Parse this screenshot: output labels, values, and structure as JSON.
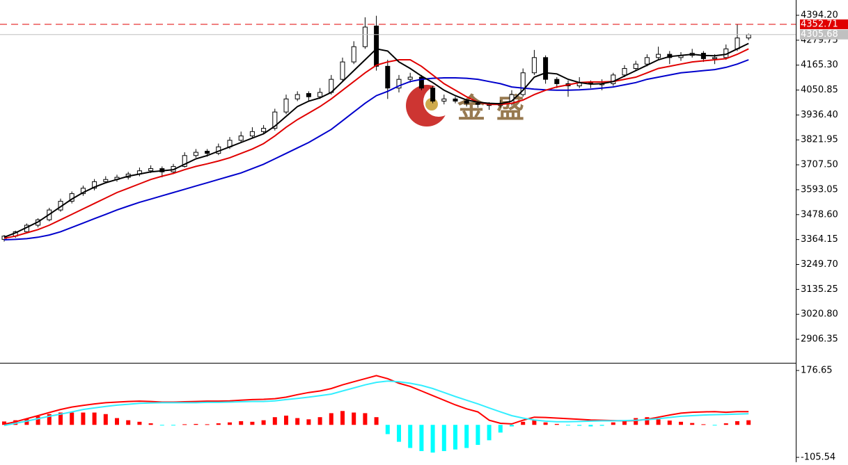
{
  "chart_data": [
    {
      "type": "candlestick",
      "watermark": "金盛",
      "up_color": "#ffffff",
      "down_color": "#000000",
      "wick_color": "#000000",
      "candles": [
        [
          3365,
          3385,
          3355,
          3380
        ],
        [
          3380,
          3405,
          3372,
          3400
        ],
        [
          3400,
          3438,
          3392,
          3430
        ],
        [
          3430,
          3462,
          3420,
          3455
        ],
        [
          3455,
          3510,
          3448,
          3500
        ],
        [
          3500,
          3552,
          3492,
          3540
        ],
        [
          3540,
          3585,
          3530,
          3575
        ],
        [
          3575,
          3612,
          3565,
          3600
        ],
        [
          3600,
          3642,
          3590,
          3630
        ],
        [
          3630,
          3655,
          3622,
          3640
        ],
        [
          3640,
          3662,
          3630,
          3650
        ],
        [
          3650,
          3675,
          3640,
          3665
        ],
        [
          3665,
          3695,
          3655,
          3680
        ],
        [
          3680,
          3705,
          3670,
          3690
        ],
        [
          3690,
          3700,
          3650,
          3675
        ],
        [
          3675,
          3712,
          3665,
          3700
        ],
        [
          3700,
          3765,
          3695,
          3750
        ],
        [
          3750,
          3780,
          3740,
          3765
        ],
        [
          3770,
          3780,
          3745,
          3760
        ],
        [
          3760,
          3805,
          3752,
          3790
        ],
        [
          3790,
          3835,
          3780,
          3820
        ],
        [
          3820,
          3860,
          3810,
          3840
        ],
        [
          3840,
          3880,
          3830,
          3860
        ],
        [
          3860,
          3890,
          3850,
          3875
        ],
        [
          3875,
          3965,
          3865,
          3950
        ],
        [
          3950,
          4030,
          3940,
          4010
        ],
        [
          4010,
          4045,
          4000,
          4030
        ],
        [
          4035,
          4045,
          4000,
          4020
        ],
        [
          4020,
          4060,
          4010,
          4040
        ],
        [
          4040,
          4120,
          4030,
          4100
        ],
        [
          4100,
          4200,
          4090,
          4180
        ],
        [
          4180,
          4275,
          4170,
          4250
        ],
        [
          4250,
          4385,
          4240,
          4340
        ],
        [
          4345,
          4392,
          4140,
          4160
        ],
        [
          4160,
          4190,
          4010,
          4060
        ],
        [
          4060,
          4120,
          4040,
          4100
        ],
        [
          4100,
          4130,
          4085,
          4110
        ],
        [
          4110,
          4120,
          4050,
          4060
        ],
        [
          4060,
          4070,
          3990,
          4000
        ],
        [
          4000,
          4030,
          3985,
          4010
        ],
        [
          4010,
          4020,
          3990,
          4000
        ],
        [
          4000,
          4010,
          3975,
          3990
        ],
        [
          3990,
          4000,
          3970,
          3985
        ],
        [
          3985,
          3995,
          3960,
          3980
        ],
        [
          3980,
          4005,
          3970,
          3990
        ],
        [
          3990,
          4050,
          3980,
          4030
        ],
        [
          4030,
          4150,
          4020,
          4130
        ],
        [
          4130,
          4235,
          4120,
          4200
        ],
        [
          4200,
          4210,
          4080,
          4100
        ],
        [
          4100,
          4110,
          4060,
          4080
        ],
        [
          4080,
          4095,
          4020,
          4070
        ],
        [
          4070,
          4110,
          4060,
          4085
        ],
        [
          4085,
          4095,
          4060,
          4080
        ],
        [
          4075,
          4100,
          4050,
          4080
        ],
        [
          4080,
          4130,
          4070,
          4120
        ],
        [
          4120,
          4165,
          4110,
          4150
        ],
        [
          4150,
          4185,
          4140,
          4170
        ],
        [
          4170,
          4215,
          4160,
          4200
        ],
        [
          4200,
          4250,
          4190,
          4215
        ],
        [
          4215,
          4230,
          4170,
          4200
        ],
        [
          4200,
          4225,
          4185,
          4210
        ],
        [
          4210,
          4240,
          4200,
          4220
        ],
        [
          4220,
          4230,
          4180,
          4195
        ],
        [
          4195,
          4215,
          4170,
          4200
        ],
        [
          4200,
          4260,
          4190,
          4240
        ],
        [
          4240,
          4352,
          4230,
          4290
        ],
        [
          4290,
          4310,
          4280,
          4305
        ]
      ],
      "lines": [
        {
          "color": "#0000cc",
          "values": [
            3363,
            3365,
            3368,
            3375,
            3385,
            3400,
            3420,
            3440,
            3460,
            3480,
            3500,
            3518,
            3535,
            3550,
            3565,
            3580,
            3595,
            3610,
            3625,
            3640,
            3655,
            3670,
            3690,
            3710,
            3735,
            3760,
            3785,
            3810,
            3840,
            3870,
            3910,
            3950,
            3990,
            4025,
            4045,
            4070,
            4090,
            4100,
            4105,
            4107,
            4107,
            4105,
            4100,
            4090,
            4080,
            4065,
            4060,
            4055,
            4052,
            4050,
            4050,
            4052,
            4055,
            4060,
            4065,
            4075,
            4085,
            4100,
            4110,
            4120,
            4130,
            4135,
            4140,
            4145,
            4155,
            4170,
            4190
          ]
        },
        {
          "color": "#e00000",
          "values": [
            3370,
            3380,
            3395,
            3410,
            3430,
            3455,
            3480,
            3505,
            3530,
            3555,
            3580,
            3600,
            3620,
            3640,
            3655,
            3668,
            3685,
            3700,
            3712,
            3725,
            3740,
            3760,
            3780,
            3805,
            3840,
            3880,
            3915,
            3945,
            3975,
            4010,
            4050,
            4090,
            4130,
            4165,
            4180,
            4190,
            4190,
            4160,
            4120,
            4080,
            4050,
            4020,
            3995,
            3985,
            3985,
            3990,
            4005,
            4030,
            4050,
            4065,
            4075,
            4085,
            4088,
            4088,
            4090,
            4100,
            4110,
            4130,
            4150,
            4160,
            4170,
            4180,
            4185,
            4190,
            4195,
            4215,
            4240
          ]
        },
        {
          "color": "#000000",
          "values": [
            3375,
            3395,
            3420,
            3445,
            3480,
            3515,
            3550,
            3580,
            3605,
            3625,
            3640,
            3655,
            3665,
            3675,
            3680,
            3685,
            3710,
            3735,
            3750,
            3770,
            3790,
            3810,
            3830,
            3850,
            3885,
            3930,
            3975,
            4000,
            4015,
            4040,
            4090,
            4140,
            4190,
            4240,
            4230,
            4180,
            4150,
            4115,
            4085,
            4050,
            4025,
            4005,
            3995,
            3990,
            3988,
            4000,
            4050,
            4110,
            4130,
            4125,
            4100,
            4085,
            4078,
            4080,
            4090,
            4115,
            4140,
            4165,
            4190,
            4205,
            4210,
            4215,
            4210,
            4208,
            4215,
            4240,
            4265
          ]
        }
      ],
      "ylim": [
        2798,
        4464.4
      ],
      "yticks": [
        {
          "value": 4394.2,
          "label": "4394.20"
        },
        4279.75,
        {
          "value": 4165.3,
          "label": "4165.30"
        },
        4050.85,
        {
          "value": 3936.4,
          "label": "3936.40"
        },
        3821.95,
        {
          "value": 3707.5,
          "label": "3707.50"
        },
        3593.05,
        {
          "value": 3478.6,
          "label": "3478.60"
        },
        3364.15,
        {
          "value": 3249.7,
          "label": "3249.70"
        },
        3135.25,
        {
          "value": 3020.8,
          "label": "3020.80"
        },
        2906.35
      ],
      "price_labels": [
        {
          "value": 4352.71,
          "color": "#e00000",
          "line": "dashed"
        },
        {
          "value": 4305.68,
          "color": "#c0c0c0",
          "line": "solid"
        }
      ]
    },
    {
      "type": "macd",
      "pos_color": "#ff0000",
      "neg_color": "#00ffff",
      "histogram": [
        11,
        15,
        20,
        28,
        35,
        40,
        40,
        40,
        40,
        35,
        22,
        15,
        10,
        5,
        -2,
        -1,
        2,
        3,
        2,
        5,
        8,
        12,
        10,
        15,
        25,
        30,
        22,
        18,
        25,
        38,
        45,
        40,
        38,
        25,
        -30,
        -55,
        -75,
        -85,
        -90,
        -85,
        -80,
        -75,
        -65,
        -50,
        -25,
        -5,
        10,
        15,
        8,
        3,
        -2,
        -3,
        -5,
        -3,
        8,
        15,
        22,
        25,
        18,
        14,
        10,
        6,
        2,
        -1,
        5,
        12,
        15
      ],
      "lines": [
        {
          "color": "#ff0000",
          "values": [
            2,
            10,
            20,
            30,
            40,
            50,
            58,
            63,
            68,
            72,
            74,
            76,
            77,
            76,
            74,
            74,
            75,
            76,
            77,
            77,
            78,
            80,
            82,
            83,
            85,
            90,
            98,
            105,
            110,
            118,
            130,
            140,
            150,
            160,
            150,
            135,
            125,
            110,
            95,
            80,
            65,
            52,
            42,
            15,
            5,
            3,
            15,
            25,
            24,
            22,
            20,
            18,
            16,
            15,
            14,
            13,
            14,
            18,
            25,
            32,
            38,
            41,
            42,
            43,
            41,
            43,
            43
          ]
        },
        {
          "color": "#33eeff",
          "values": [
            -2,
            5,
            12,
            20,
            28,
            35,
            42,
            50,
            55,
            60,
            64,
            67,
            70,
            71,
            72,
            72,
            72,
            72,
            73,
            73,
            74,
            75,
            76,
            76,
            78,
            82,
            86,
            90,
            95,
            100,
            110,
            120,
            130,
            138,
            142,
            140,
            135,
            128,
            118,
            105,
            92,
            80,
            68,
            55,
            42,
            30,
            22,
            16,
            12,
            10,
            10,
            11,
            12,
            13,
            13,
            14,
            15,
            17,
            20,
            24,
            28,
            30,
            32,
            33,
            34,
            35,
            36
          ]
        }
      ],
      "ylim": [
        -121.3,
        199.2
      ],
      "yticks": [
        176.65,
        -105.54
      ]
    }
  ]
}
